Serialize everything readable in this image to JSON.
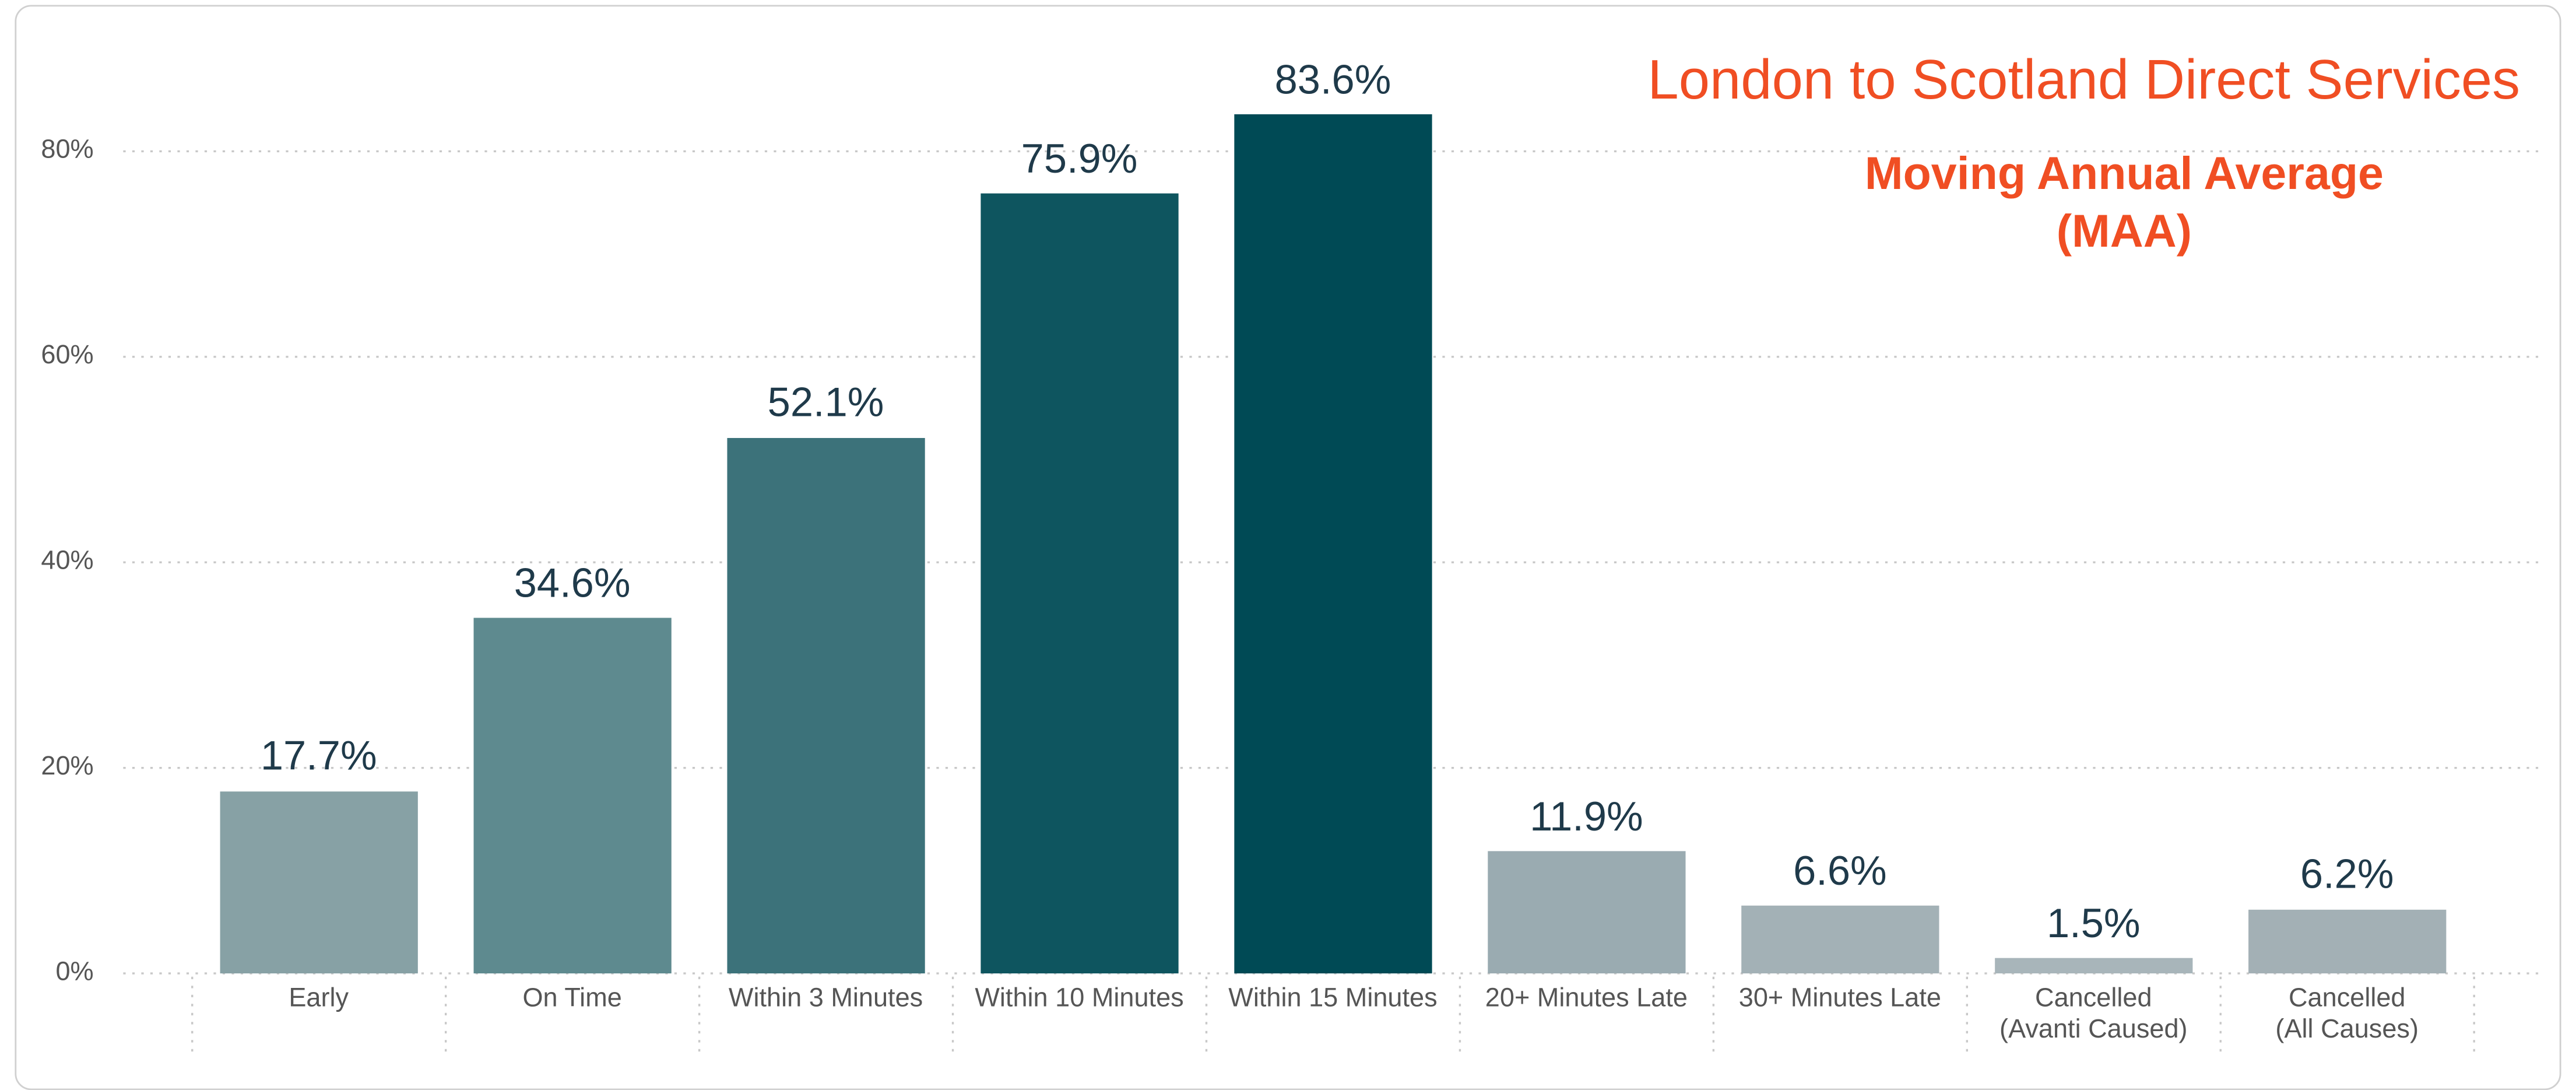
{
  "chart_data": {
    "type": "bar",
    "title": "London to Scotland Direct Services",
    "subtitle": "Moving Annual Average\n(MAA)",
    "categories": [
      "Early",
      "On Time",
      "Within 3 Minutes",
      "Within 10 Minutes",
      "Within 15 Minutes",
      "20+ Minutes Late",
      "30+ Minutes Late",
      "Cancelled\n(Avanti Caused)",
      "Cancelled\n(All Causes)"
    ],
    "values": [
      17.7,
      34.6,
      52.1,
      75.9,
      83.6,
      11.9,
      6.6,
      1.5,
      6.2
    ],
    "value_labels": [
      "17.7%",
      "34.6%",
      "52.1%",
      "75.9%",
      "83.6%",
      "11.9%",
      "6.6%",
      "1.5%",
      "6.2%"
    ],
    "colors": [
      "#87a1a5",
      "#5e8a8f",
      "#3c727a",
      "#0e555f",
      "#004a55",
      "#9aabb1",
      "#a3b1b6",
      "#a8b5ba",
      "#a3b0b5"
    ],
    "ylim": [
      0,
      80
    ],
    "yticks": [
      {
        "value": 0,
        "label": "0%"
      },
      {
        "value": 20,
        "label": "20%"
      },
      {
        "value": 40,
        "label": "40%"
      },
      {
        "value": 60,
        "label": "60%"
      },
      {
        "value": 80,
        "label": "80%"
      }
    ],
    "grid": true
  }
}
